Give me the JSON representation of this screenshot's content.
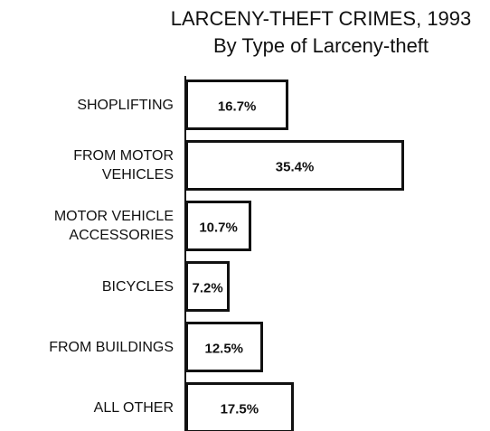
{
  "chart_data": {
    "type": "bar",
    "orientation": "horizontal",
    "title": "LARCENY-THEFT CRIMES, 1993",
    "subtitle": "By Type of Larceny-theft",
    "categories": [
      "SHOPLIFTING",
      "FROM MOTOR VEHICLES",
      "MOTOR VEHICLE ACCESSORIES",
      "BICYCLES",
      "FROM BUILDINGS",
      "ALL OTHER"
    ],
    "values": [
      16.7,
      35.4,
      10.7,
      7.2,
      12.5,
      17.5
    ],
    "value_labels": [
      "16.7%",
      "35.4%",
      "10.7%",
      "7.2%",
      "12.5%",
      "17.5%"
    ],
    "color": "#ffffff"
  }
}
